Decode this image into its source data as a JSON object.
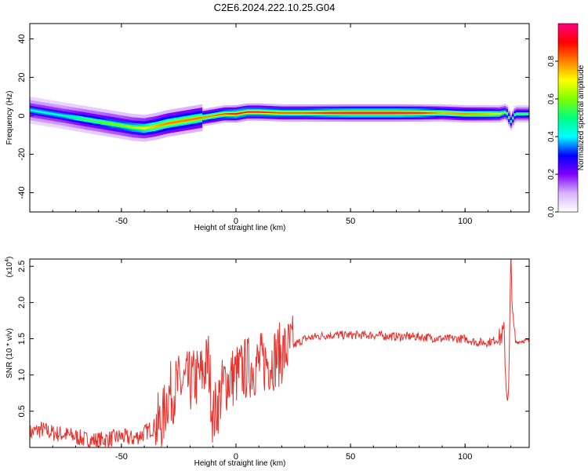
{
  "title": "C2E6.2024.222.10.25.G04",
  "chart_data": [
    {
      "type": "heatmap",
      "title": "C2E6.2024.222.10.25.G04",
      "xlabel": "Height of straight line (km)",
      "ylabel": "Frequency (Hz)",
      "xlim": [
        -90,
        128
      ],
      "ylim": [
        -50,
        48
      ],
      "xticks": [
        "-50",
        "0",
        "50",
        "100"
      ],
      "yticks": [
        "-40",
        "-20",
        "0",
        "20",
        "40"
      ],
      "colorbar": {
        "label": "Normalized spectral amplitude",
        "range": [
          0,
          1
        ],
        "ticks": [
          "0.0",
          "0.2",
          "0.4",
          "0.6",
          "0.8"
        ],
        "colors": [
          "#ffffff",
          "#d9b3ff",
          "#8000ff",
          "#0000ff",
          "#00ffff",
          "#00ff80",
          "#80ff00",
          "#ffff00",
          "#ff8000",
          "#ff0000",
          "#ff0080"
        ]
      },
      "ridge": {
        "x": [
          -90,
          -85,
          -80,
          -75,
          -70,
          -65,
          -60,
          -55,
          -50,
          -45,
          -40,
          -35,
          -30,
          -25,
          -20,
          -15,
          -10,
          -5,
          0,
          5,
          10,
          20,
          30,
          40,
          50,
          60,
          70,
          80,
          90,
          100,
          110,
          115,
          118,
          120,
          122,
          128
        ],
        "y": [
          3,
          2,
          1,
          0,
          -1,
          -2,
          -3,
          -4,
          -5,
          -6,
          -6.5,
          -5.5,
          -4,
          -3,
          -2,
          -1,
          0,
          1,
          1,
          2,
          2,
          1.5,
          1.5,
          1.5,
          1.5,
          1.5,
          1.5,
          1.5,
          1.5,
          1,
          1,
          1,
          2,
          -3,
          1,
          1
        ],
        "amplitude": [
          0.45,
          0.45,
          0.45,
          0.45,
          0.5,
          0.55,
          0.55,
          0.6,
          0.6,
          0.65,
          0.7,
          0.75,
          0.8,
          0.8,
          0.8,
          0.8,
          0.8,
          0.85,
          0.95,
          0.9,
          0.9,
          0.85,
          0.85,
          0.95,
          1,
          1,
          1,
          0.95,
          0.75,
          0.8,
          0.75,
          0.7,
          0.6,
          0.55,
          0.55,
          0.55
        ]
      }
    },
    {
      "type": "line",
      "xlabel": "Height of straight line (km)",
      "ylabel": "SNR (10 * v/v)",
      "ymultiplier": "(x10",
      "ymultiplier_exp": "4",
      "ymultiplier_close": ")",
      "xlim": [
        -90,
        128
      ],
      "ylim": [
        0,
        2.6
      ],
      "xticks": [
        "-50",
        "0",
        "50",
        "100"
      ],
      "yticks": [
        "0.5",
        "1.0",
        "1.5",
        "2.0",
        "2.5"
      ],
      "color": "#e8322c",
      "x": [
        -90,
        -85,
        -80,
        -75,
        -70,
        -65,
        -60,
        -55,
        -50,
        -45,
        -40,
        -35,
        -32,
        -30,
        -25,
        -20,
        -15,
        -12,
        -10,
        -5,
        0,
        5,
        10,
        15,
        20,
        25,
        30,
        35,
        40,
        50,
        60,
        70,
        80,
        90,
        100,
        105,
        110,
        115,
        117,
        118,
        119,
        120,
        121,
        122,
        125,
        128
      ],
      "y": [
        0.2,
        0.25,
        0.2,
        0.18,
        0.15,
        0.1,
        0.1,
        0.12,
        0.15,
        0.12,
        0.2,
        0.3,
        0.35,
        0.7,
        0.85,
        0.9,
        1.0,
        1.2,
        0.4,
        0.9,
        1.0,
        1.1,
        1.15,
        1.2,
        1.3,
        1.4,
        1.5,
        1.53,
        1.55,
        1.55,
        1.55,
        1.53,
        1.53,
        1.5,
        1.5,
        1.45,
        1.45,
        1.5,
        1.6,
        0.8,
        0.7,
        2.6,
        1.7,
        1.45,
        1.47,
        1.48
      ]
    }
  ]
}
